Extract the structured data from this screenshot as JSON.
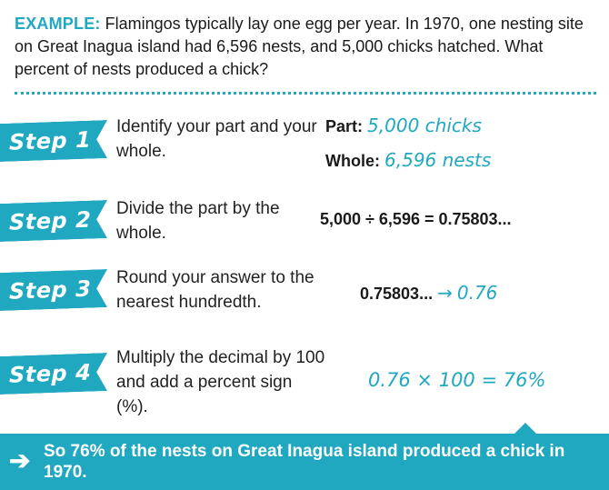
{
  "example": {
    "label": "EXAMPLE:",
    "text": " Flamingos typically lay one egg per year. In 1970, one nesting site on Great Inagua island had 6,596 nests, and 5,000 chicks hatched. What percent of nests produced a chick?"
  },
  "steps": [
    {
      "badge": "Step 1",
      "instruction": "Identify your part and your whole.",
      "part_label": "Part:",
      "part_value": "5,000 chicks",
      "whole_label": "Whole:",
      "whole_value": "6,596 nests"
    },
    {
      "badge": "Step 2",
      "instruction": "Divide the part by the whole.",
      "calc": "5,000 ÷ 6,596 = 0.75803..."
    },
    {
      "badge": "Step 3",
      "instruction": "Round your answer to the nearest hundredth.",
      "calc_left": "0.75803...",
      "arrow": "→",
      "calc_right": "0.76"
    },
    {
      "badge": "Step 4",
      "instruction": "Multiply the decimal by 100 and add a percent sign (%).",
      "calc": "0.76 × 100 = 76%"
    }
  ],
  "conclusion": {
    "arrow": "➔",
    "text": "So 76% of the nests on Great Inagua island produced a chick in 1970."
  },
  "colors": {
    "accent": "#1fa8c0",
    "text": "#1a1a1a"
  }
}
